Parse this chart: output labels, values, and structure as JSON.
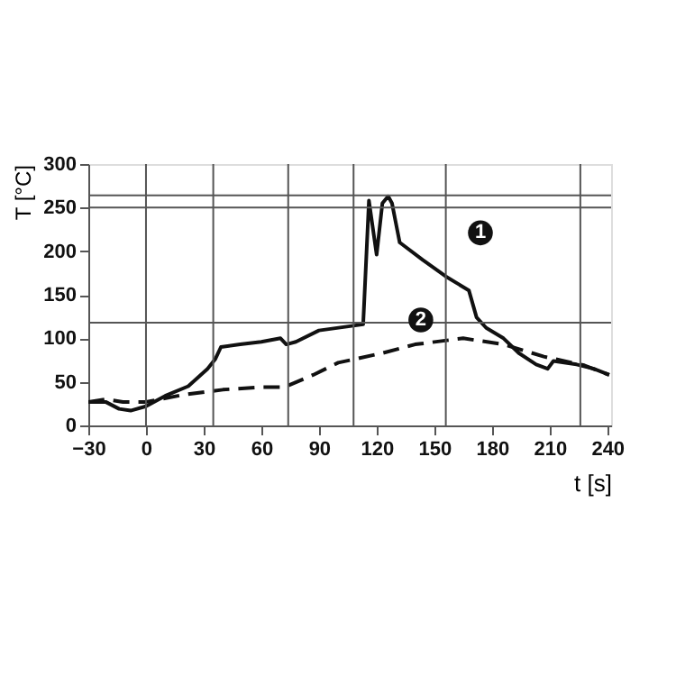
{
  "chart_data": {
    "type": "line",
    "xlabel": "t [s]",
    "ylabel": "T [°C]",
    "xlim": [
      -30,
      242
    ],
    "xticks": [
      -30,
      0,
      30,
      60,
      90,
      120,
      150,
      180,
      210,
      240
    ],
    "ylim": [
      0,
      300
    ],
    "yticks": [
      0,
      50,
      100,
      150,
      200,
      250,
      300
    ],
    "grid": false,
    "series": [
      {
        "color": "#111111",
        "line_style": "solid",
        "x": [
          -30,
          -21,
          -14,
          -8,
          0,
          10,
          22,
          32,
          36,
          39,
          49,
          60,
          70,
          73,
          78,
          90,
          113,
          116,
          120,
          123,
          126,
          128,
          132,
          144,
          156,
          168,
          172,
          177,
          186,
          194,
          203,
          209,
          212,
          224,
          233,
          241
        ],
        "values": [
          27,
          27,
          19,
          17,
          22,
          34,
          45,
          65,
          76,
          90,
          93,
          96,
          100,
          93,
          96,
          109,
          116,
          258,
          196,
          255,
          263,
          255,
          210,
          190,
          171,
          155,
          124,
          112,
          100,
          83,
          70,
          65,
          74,
          70,
          65,
          58
        ]
      },
      {
        "color": "#111111",
        "line_style": "dashed",
        "x": [
          -30,
          -21,
          -12,
          0,
          19,
          40,
          60,
          72,
          87,
          100,
          123,
          140,
          165,
          186,
          207,
          228,
          241
        ],
        "values": [
          27,
          30,
          27,
          27,
          35,
          41,
          44,
          44,
          58,
          72,
          83,
          93,
          100,
          93,
          79,
          69,
          58
        ]
      }
    ],
    "ref_lines": [
      {
        "axis": "x",
        "value": 0,
        "color": "#555555"
      },
      {
        "axis": "x",
        "value": 35,
        "color": "#555555"
      },
      {
        "axis": "x",
        "value": 74,
        "color": "#555555"
      },
      {
        "axis": "x",
        "value": 108,
        "color": "#555555"
      },
      {
        "axis": "x",
        "value": 156,
        "color": "#555555"
      },
      {
        "axis": "x",
        "value": 226,
        "color": "#555555"
      },
      {
        "axis": "y",
        "value": 264,
        "color": "#555555"
      },
      {
        "axis": "y",
        "value": 250,
        "color": "#555555"
      },
      {
        "axis": "y",
        "value": 118,
        "color": "#555555"
      }
    ],
    "annotations": [
      {
        "text": "1",
        "x": 174,
        "y": 221
      },
      {
        "text": "2",
        "x": 143,
        "y": 121
      }
    ]
  }
}
